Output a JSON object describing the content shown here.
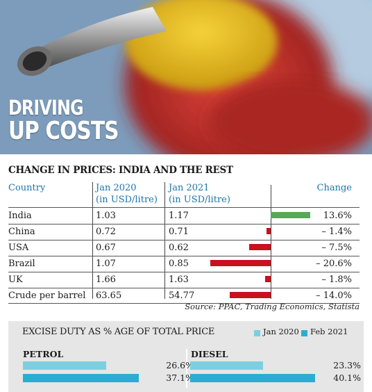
{
  "headline": {
    "line1": "DRIVING",
    "line2": "UP COSTS"
  },
  "colors": {
    "increase": "#58a85a",
    "decrease": "#c8101e",
    "header_text": "#1e74a8",
    "jan2020": "#7ccfe0",
    "feb2021": "#2aaed0"
  },
  "chart_data": [
    {
      "type": "table",
      "title": "CHANGE IN PRICES: INDIA AND THE REST",
      "columns": [
        "Country",
        "Jan 2020 (in USD/litre)",
        "Jan 2021 (in USD/litre)",
        "Change"
      ],
      "header": {
        "country": "Country",
        "jan2020_line1": "Jan 2020",
        "jan2020_line2": "(in USD/litre)",
        "jan2021_line1": "Jan 2021",
        "jan2021_line2": "(in USD/litre)",
        "change": "Change"
      },
      "rows": [
        {
          "country": "India",
          "jan2020": "1.03",
          "jan2021": "1.17",
          "change_label": "13.6%",
          "change": 13.6
        },
        {
          "country": "China",
          "jan2020": "0.72",
          "jan2021": "0.71",
          "change_label": "– 1.4%",
          "change": -1.4
        },
        {
          "country": "USA",
          "jan2020": "0.67",
          "jan2021": "0.62",
          "change_label": "– 7.5%",
          "change": -7.5
        },
        {
          "country": "Brazil",
          "jan2020": "1.07",
          "jan2021": "0.85",
          "change_label": "– 20.6%",
          "change": -20.6
        },
        {
          "country": "UK",
          "jan2020": "1.66",
          "jan2021": "1.63",
          "change_label": "– 1.8%",
          "change": -1.8
        },
        {
          "country": "Crude per barrel",
          "jan2020": "63.65",
          "jan2021": "54.77",
          "change_label": "– 14.0%",
          "change": -14.0
        }
      ],
      "source": "Source: PPAC, Trading Economics, Statista"
    },
    {
      "type": "bar",
      "title": "EXCISE DUTY AS % AGE OF TOTAL PRICE",
      "categories": [
        "PETROL",
        "DIESEL"
      ],
      "series": [
        {
          "name": "Jan 2020",
          "values": [
            26.6,
            23.3
          ],
          "labels": [
            "26.6%",
            "23.3%"
          ]
        },
        {
          "name": "Feb 2021",
          "values": [
            37.1,
            40.1
          ],
          "labels": [
            "37.1%",
            "40.1%"
          ]
        }
      ],
      "legend": "top-right"
    }
  ]
}
